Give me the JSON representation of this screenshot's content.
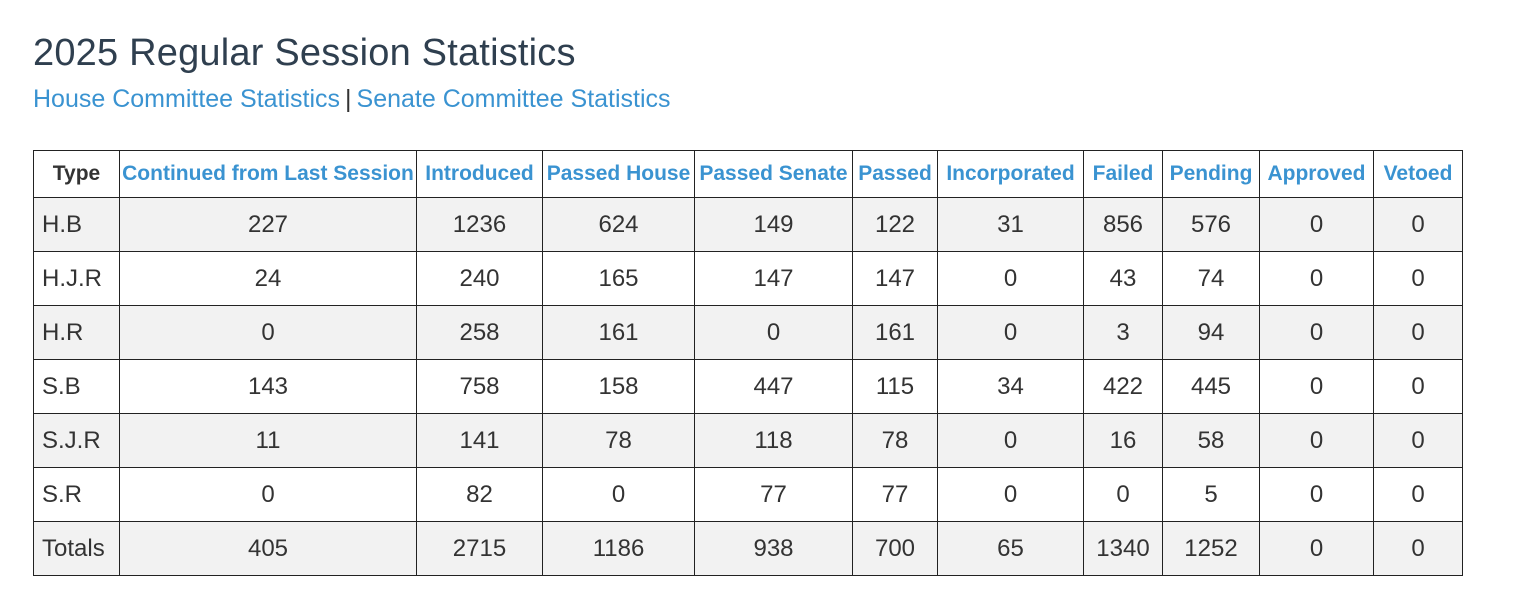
{
  "page": {
    "title": "2025 Regular Session Statistics",
    "links": {
      "house": "House Committee Statistics",
      "separator": "|",
      "senate": "Senate Committee Statistics"
    }
  },
  "table": {
    "headers": [
      "Type",
      "Continued from Last Session",
      "Introduced",
      "Passed House",
      "Passed Senate",
      "Passed",
      "Incorporated",
      "Failed",
      "Pending",
      "Approved",
      "Vetoed"
    ],
    "rows": [
      [
        "H.B",
        "227",
        "1236",
        "624",
        "149",
        "122",
        "31",
        "856",
        "576",
        "0",
        "0"
      ],
      [
        "H.J.R",
        "24",
        "240",
        "165",
        "147",
        "147",
        "0",
        "43",
        "74",
        "0",
        "0"
      ],
      [
        "H.R",
        "0",
        "258",
        "161",
        "0",
        "161",
        "0",
        "3",
        "94",
        "0",
        "0"
      ],
      [
        "S.B",
        "143",
        "758",
        "158",
        "447",
        "115",
        "34",
        "422",
        "445",
        "0",
        "0"
      ],
      [
        "S.J.R",
        "11",
        "141",
        "78",
        "118",
        "78",
        "0",
        "16",
        "58",
        "0",
        "0"
      ],
      [
        "S.R",
        "0",
        "82",
        "0",
        "77",
        "77",
        "0",
        "0",
        "5",
        "0",
        "0"
      ],
      [
        "Totals",
        "405",
        "2715",
        "1186",
        "938",
        "700",
        "65",
        "1340",
        "1252",
        "0",
        "0"
      ]
    ]
  },
  "colors": {
    "link": "#3a93d1",
    "title": "#2f3f4f",
    "text": "#333333",
    "row_shade": "#f2f2f2",
    "border": "#222222"
  }
}
